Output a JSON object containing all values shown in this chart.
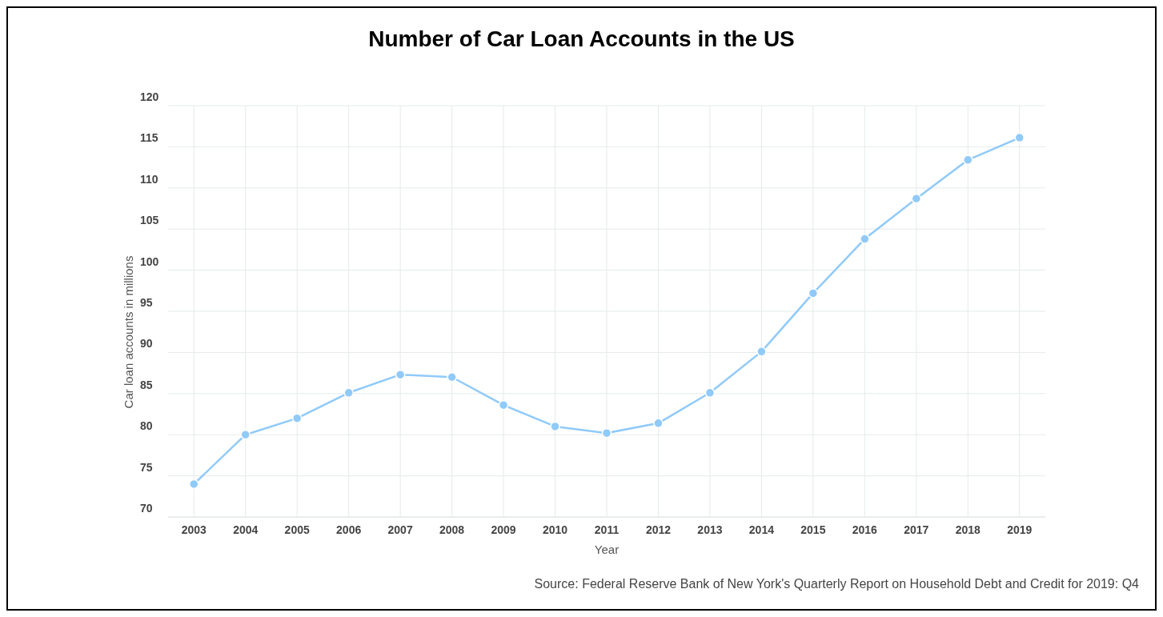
{
  "chart_data": {
    "type": "line",
    "title": "Number of Car Loan Accounts in the US",
    "xlabel": "Year",
    "ylabel": "Car loan accounts in millions",
    "annotations": [
      "Source: Federal Reserve Bank of New York's Quarterly Report on Household Debt and Credit for 2019: Q4"
    ],
    "categories": [
      "2003",
      "2004",
      "2005",
      "2006",
      "2007",
      "2008",
      "2009",
      "2010",
      "2011",
      "2012",
      "2013",
      "2014",
      "2015",
      "2016",
      "2017",
      "2018",
      "2019"
    ],
    "series": [
      {
        "color": "#90caf9",
        "values": [
          74,
          80,
          82,
          85.1,
          87.3,
          87,
          83.6,
          81,
          80.2,
          81.4,
          85.1,
          90.1,
          97.2,
          103.8,
          108.7,
          113.4,
          116.1
        ]
      }
    ],
    "ylim": [
      70,
      120
    ],
    "yticks": [
      70,
      75,
      80,
      85,
      90,
      95,
      100,
      105,
      110,
      115,
      120
    ],
    "grid": true,
    "marker": "circle",
    "line_style": "solid"
  }
}
